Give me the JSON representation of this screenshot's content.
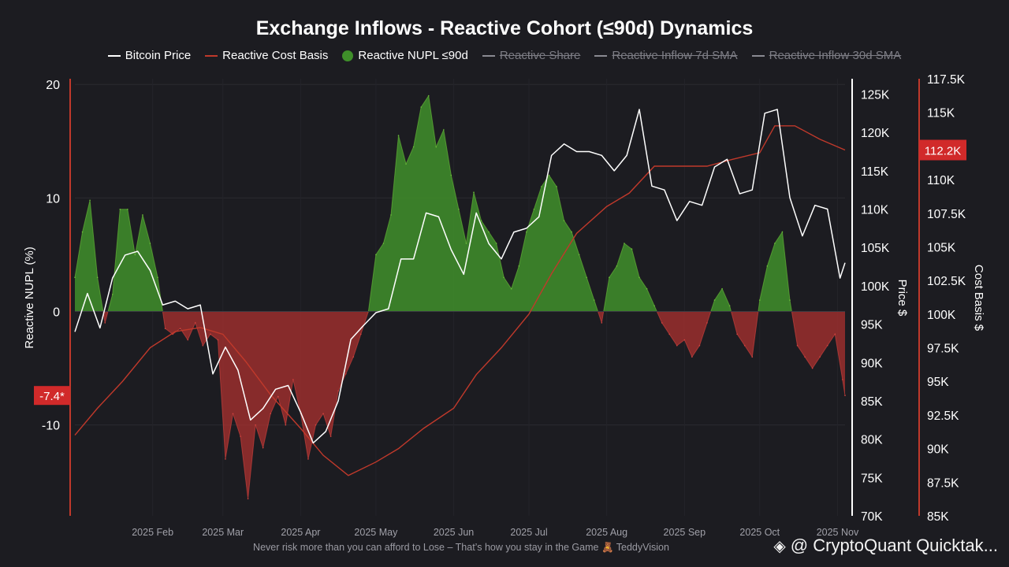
{
  "title": "Exchange Inflows - Reactive Cohort (≤90d) Dynamics",
  "legend": [
    {
      "label": "Bitcoin Price",
      "color": "#ffffff",
      "kind": "line",
      "active": true
    },
    {
      "label": "Reactive Cost Basis",
      "color": "#c0392b",
      "kind": "line",
      "active": true
    },
    {
      "label": "Reactive NUPL ≤90d",
      "color": "#3f8f2a",
      "kind": "dot",
      "active": true
    },
    {
      "label": "Reactive Share",
      "color": "#8a8a92",
      "kind": "line",
      "active": false
    },
    {
      "label": "Reactive Inflow 7d SMA",
      "color": "#8a8a92",
      "kind": "line",
      "active": false
    },
    {
      "label": "Reactive Inflow 30d SMA",
      "color": "#8a8a92",
      "kind": "line",
      "active": false
    }
  ],
  "footer": "Never risk more than you can afford to Lose – That’s how you stay in the Game 🧸 TeddyVision",
  "watermark": "@ CryptoQuant Quicktak...",
  "chart_data": {
    "type": "line",
    "x_range": [
      "2025-01-01",
      "2025-11-04"
    ],
    "x_ticks": [
      "2025 Feb",
      "2025 Mar",
      "2025 Apr",
      "2025 May",
      "2025 Jun",
      "2025 Jul",
      "2025 Aug",
      "2025 Sep",
      "2025 Oct",
      "2025 Nov"
    ],
    "axes": {
      "left": {
        "label": "Reactive NUPL (%)",
        "range": [
          -18,
          20.5
        ],
        "ticks": [
          "20",
          "10",
          "0",
          "-10"
        ],
        "marker": "-7.4*"
      },
      "price": {
        "label": "Price $",
        "range": [
          70000,
          127000
        ],
        "ticks": [
          "125K",
          "120K",
          "115K",
          "110K",
          "105K",
          "100K",
          "95K",
          "90K",
          "85K",
          "80K",
          "75K",
          "70K"
        ]
      },
      "cost": {
        "label": "Cost Basis $",
        "range": [
          85000,
          117500
        ],
        "ticks": [
          "117.5K",
          "115K",
          "112.5K",
          "110K",
          "107.5K",
          "105K",
          "102.5K",
          "100K",
          "97.5K",
          "95K",
          "92.5K",
          "90K",
          "87.5K",
          "85K"
        ],
        "marker": "112.2K"
      }
    },
    "series": [
      {
        "name": "Reactive NUPL ≤90d",
        "axis": "left",
        "color_pos": "#3f8f2a",
        "color_neg": "#a3302e",
        "x": [
          "2025-01-01",
          "2025-01-04",
          "2025-01-07",
          "2025-01-10",
          "2025-01-13",
          "2025-01-16",
          "2025-01-19",
          "2025-01-22",
          "2025-01-25",
          "2025-01-28",
          "2025-01-31",
          "2025-02-03",
          "2025-02-06",
          "2025-02-09",
          "2025-02-12",
          "2025-02-15",
          "2025-02-18",
          "2025-02-21",
          "2025-02-24",
          "2025-02-27",
          "2025-03-02",
          "2025-03-05",
          "2025-03-08",
          "2025-03-11",
          "2025-03-14",
          "2025-03-17",
          "2025-03-20",
          "2025-03-23",
          "2025-03-26",
          "2025-03-29",
          "2025-04-01",
          "2025-04-04",
          "2025-04-07",
          "2025-04-10",
          "2025-04-13",
          "2025-04-16",
          "2025-04-19",
          "2025-04-22",
          "2025-04-25",
          "2025-04-28",
          "2025-05-01",
          "2025-05-04",
          "2025-05-07",
          "2025-05-10",
          "2025-05-13",
          "2025-05-16",
          "2025-05-19",
          "2025-05-22",
          "2025-05-25",
          "2025-05-28",
          "2025-05-31",
          "2025-06-03",
          "2025-06-06",
          "2025-06-09",
          "2025-06-12",
          "2025-06-15",
          "2025-06-18",
          "2025-06-21",
          "2025-06-24",
          "2025-06-27",
          "2025-06-30",
          "2025-07-03",
          "2025-07-06",
          "2025-07-09",
          "2025-07-12",
          "2025-07-15",
          "2025-07-18",
          "2025-07-21",
          "2025-07-24",
          "2025-07-27",
          "2025-07-30",
          "2025-08-02",
          "2025-08-05",
          "2025-08-08",
          "2025-08-11",
          "2025-08-14",
          "2025-08-17",
          "2025-08-20",
          "2025-08-23",
          "2025-08-26",
          "2025-08-29",
          "2025-09-01",
          "2025-09-04",
          "2025-09-07",
          "2025-09-10",
          "2025-09-13",
          "2025-09-16",
          "2025-09-19",
          "2025-09-22",
          "2025-09-25",
          "2025-09-28",
          "2025-10-01",
          "2025-10-04",
          "2025-10-07",
          "2025-10-10",
          "2025-10-13",
          "2025-10-16",
          "2025-10-19",
          "2025-10-22",
          "2025-10-25",
          "2025-10-28",
          "2025-10-31",
          "2025-11-03",
          "2025-11-04"
        ],
        "values": [
          3,
          7,
          9.8,
          3,
          -1,
          1.5,
          9,
          9,
          5,
          8.5,
          6,
          3,
          -1.5,
          -2,
          -1.5,
          -2.5,
          -1,
          -3,
          -2,
          -2.5,
          -13,
          -9,
          -11,
          -16.5,
          -10,
          -12,
          -9,
          -7.5,
          -10,
          -6,
          -9,
          -13,
          -10,
          -9,
          -11,
          -7,
          -5.5,
          -4,
          -2,
          0,
          5,
          6,
          8.5,
          15.5,
          13,
          14.5,
          18,
          19,
          14.5,
          16,
          12,
          9,
          6,
          10.5,
          8,
          7,
          6,
          3,
          2,
          4,
          7,
          9,
          11,
          12,
          11,
          8,
          7,
          5,
          3,
          1,
          -1,
          3,
          4,
          6,
          5.5,
          3,
          2,
          0.5,
          -1,
          -2,
          -3,
          -2.5,
          -4,
          -3,
          -1,
          1,
          2,
          0.5,
          -2,
          -3,
          -4,
          1,
          4,
          6,
          7,
          1,
          -3,
          -4,
          -5,
          -4,
          -3,
          -2,
          -6,
          -7.4
        ],
        "unit": "%"
      },
      {
        "name": "Bitcoin Price",
        "axis": "price",
        "color": "#ffffff",
        "x": [
          "2025-01-01",
          "2025-01-06",
          "2025-01-11",
          "2025-01-16",
          "2025-01-21",
          "2025-01-26",
          "2025-01-31",
          "2025-02-05",
          "2025-02-10",
          "2025-02-15",
          "2025-02-20",
          "2025-02-25",
          "2025-03-02",
          "2025-03-07",
          "2025-03-12",
          "2025-03-17",
          "2025-03-22",
          "2025-03-27",
          "2025-04-01",
          "2025-04-06",
          "2025-04-11",
          "2025-04-16",
          "2025-04-21",
          "2025-04-26",
          "2025-05-01",
          "2025-05-06",
          "2025-05-11",
          "2025-05-16",
          "2025-05-21",
          "2025-05-26",
          "2025-05-31",
          "2025-06-05",
          "2025-06-10",
          "2025-06-15",
          "2025-06-20",
          "2025-06-25",
          "2025-06-30",
          "2025-07-05",
          "2025-07-10",
          "2025-07-15",
          "2025-07-20",
          "2025-07-25",
          "2025-07-30",
          "2025-08-04",
          "2025-08-09",
          "2025-08-14",
          "2025-08-19",
          "2025-08-24",
          "2025-08-29",
          "2025-09-03",
          "2025-09-08",
          "2025-09-13",
          "2025-09-18",
          "2025-09-23",
          "2025-09-28",
          "2025-10-03",
          "2025-10-08",
          "2025-10-13",
          "2025-10-18",
          "2025-10-23",
          "2025-10-28",
          "2025-11-02",
          "2025-11-04"
        ],
        "values": [
          94000,
          99000,
          94500,
          101000,
          104000,
          104500,
          102000,
          97500,
          98000,
          97000,
          97500,
          88500,
          92000,
          89000,
          82500,
          84000,
          86500,
          87000,
          83500,
          79500,
          81000,
          85000,
          93000,
          94800,
          96500,
          97000,
          103500,
          103500,
          109500,
          109000,
          104700,
          101500,
          109500,
          105500,
          103500,
          107000,
          107500,
          109000,
          117000,
          118500,
          117500,
          117500,
          117000,
          115000,
          117000,
          123000,
          113000,
          112500,
          108500,
          111000,
          110500,
          115500,
          116500,
          112000,
          112500,
          122500,
          123000,
          111500,
          106500,
          110500,
          110000,
          101000,
          103000
        ],
        "unit": "USD"
      },
      {
        "name": "Reactive Cost Basis",
        "axis": "cost",
        "color": "#c0392b",
        "x": [
          "2025-01-01",
          "2025-01-10",
          "2025-01-20",
          "2025-01-31",
          "2025-02-10",
          "2025-02-20",
          "2025-03-01",
          "2025-03-10",
          "2025-03-20",
          "2025-04-01",
          "2025-04-10",
          "2025-04-20",
          "2025-05-01",
          "2025-05-10",
          "2025-05-20",
          "2025-06-01",
          "2025-06-10",
          "2025-06-20",
          "2025-07-01",
          "2025-07-10",
          "2025-07-20",
          "2025-08-01",
          "2025-08-10",
          "2025-08-20",
          "2025-09-01",
          "2025-09-10",
          "2025-09-20",
          "2025-10-01",
          "2025-10-07",
          "2025-10-15",
          "2025-10-25",
          "2025-11-04"
        ],
        "values": [
          91000,
          93000,
          95000,
          97500,
          98700,
          99000,
          98500,
          96500,
          94000,
          91500,
          89500,
          88000,
          89000,
          90000,
          91500,
          93000,
          95500,
          97500,
          100000,
          103000,
          106000,
          108000,
          109000,
          111000,
          111000,
          111000,
          111500,
          112000,
          114000,
          114000,
          113000,
          112200
        ],
        "unit": "USD"
      }
    ]
  }
}
